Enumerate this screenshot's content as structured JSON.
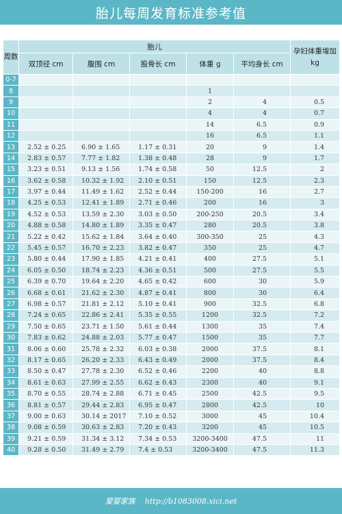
{
  "title": "胎儿每周发育标准参考值",
  "footer": {
    "left": "爱婴家族",
    "right": "http://b1083008.xici.net"
  },
  "headers": {
    "week": "周数",
    "fetus": "胎儿",
    "bpd": "双顶径 cm",
    "ac": "腹围 cm",
    "fl": "股骨长 cm",
    "weight": "体重 g",
    "length": "平均身长 cm",
    "gain": "孕妇体重增加 kg"
  },
  "rows": [
    {
      "week": "0-7",
      "bpd": "",
      "ac": "",
      "fl": "",
      "weight": "",
      "length": "",
      "gain": ""
    },
    {
      "week": "8",
      "bpd": "",
      "ac": "",
      "fl": "",
      "weight": "1",
      "length": "",
      "gain": ""
    },
    {
      "week": "9",
      "bpd": "",
      "ac": "",
      "fl": "",
      "weight": "2",
      "length": "4",
      "gain": "0.5"
    },
    {
      "week": "10",
      "bpd": "",
      "ac": "",
      "fl": "",
      "weight": "4",
      "length": "4",
      "gain": "0.7"
    },
    {
      "week": "11",
      "bpd": "",
      "ac": "",
      "fl": "",
      "weight": "14",
      "length": "6.5",
      "gain": "0.9"
    },
    {
      "week": "12",
      "bpd": "",
      "ac": "",
      "fl": "",
      "weight": "16",
      "length": "6.5",
      "gain": "1.1"
    },
    {
      "week": "13",
      "bpd": "2.52 ± 0.25",
      "ac": "6.90 ± 1.65",
      "fl": "1.17 ± 0.31",
      "weight": "20",
      "length": "9",
      "gain": "1.4"
    },
    {
      "week": "14",
      "bpd": "2.83 ± 0.57",
      "ac": "7.77 ± 1.82",
      "fl": "1.38 ± 0.48",
      "weight": "28",
      "length": "9",
      "gain": "1.7"
    },
    {
      "week": "15",
      "bpd": "3.23 ± 0.51",
      "ac": "9.13 ± 1.56",
      "fl": "1.74 ± 0.58",
      "weight": "50",
      "length": "12.5",
      "gain": "2"
    },
    {
      "week": "16",
      "bpd": "3.62 ± 0.58",
      "ac": "10.32 ± 1.92",
      "fl": "2.10 ± 0.51",
      "weight": "150",
      "length": "12.5",
      "gain": "2.3"
    },
    {
      "week": "17",
      "bpd": "3.97 ± 0.44",
      "ac": "11.49 ± 1.62",
      "fl": "2.52 ± 0.44",
      "weight": "150-200",
      "length": "16",
      "gain": "2.7"
    },
    {
      "week": "18",
      "bpd": "4.25 ± 0.53",
      "ac": "12.41 ± 1.89",
      "fl": "2.71 ± 0.46",
      "weight": "200",
      "length": "16",
      "gain": "3"
    },
    {
      "week": "19",
      "bpd": "4.52 ± 0.53",
      "ac": "13.59 ± 2.30",
      "fl": "3.03 ± 0.50",
      "weight": "200-250",
      "length": "20.5",
      "gain": "3.4"
    },
    {
      "week": "20",
      "bpd": "4.88 ± 0.58",
      "ac": "14.80 ± 1.89",
      "fl": "3.35 ± 0.47",
      "weight": "280",
      "length": "20.5",
      "gain": "3.8"
    },
    {
      "week": "21",
      "bpd": "5.22 ± 0.42",
      "ac": "15.62 ± 1.84",
      "fl": "3.64 ± 0.40",
      "weight": "300-350",
      "length": "25",
      "gain": "4.3"
    },
    {
      "week": "22",
      "bpd": "5.45 ± 0.57",
      "ac": "16.70 ± 2.23",
      "fl": "3.82 ± 0.47",
      "weight": "350",
      "length": "25",
      "gain": "4.7"
    },
    {
      "week": "23",
      "bpd": "5.80 ± 0.44",
      "ac": "17.90 ± 1.85",
      "fl": "4.21 ± 0.41",
      "weight": "400",
      "length": "27.5",
      "gain": "5.1"
    },
    {
      "week": "24",
      "bpd": "6.05 ± 0.50",
      "ac": "18.74 ± 2.23",
      "fl": "4.36 ± 0.51",
      "weight": "500",
      "length": "27.5",
      "gain": "5.5"
    },
    {
      "week": "25",
      "bpd": "6.39 ± 0.70",
      "ac": "19.64 ± 2.20",
      "fl": "4.65 ± 0.42",
      "weight": "600",
      "length": "30",
      "gain": "5.9"
    },
    {
      "week": "26",
      "bpd": "6.68 ± 0.61",
      "ac": "21.62 ± 2.30",
      "fl": "4.87 ± 0.41",
      "weight": "800",
      "length": "30",
      "gain": "6.4"
    },
    {
      "week": "27",
      "bpd": "6.98 ± 0.57",
      "ac": "21.81 ± 2.12",
      "fl": "5.10 ± 0.41",
      "weight": "900",
      "length": "32.5",
      "gain": "6.8"
    },
    {
      "week": "28",
      "bpd": "7.24 ± 0.65",
      "ac": "22.86 ± 2.41",
      "fl": "5.35 ± 0.55",
      "weight": "1200",
      "length": "32.5",
      "gain": "7.2"
    },
    {
      "week": "29",
      "bpd": "7.50 ± 0.65",
      "ac": "23.71 ± 1.50",
      "fl": "5.61 ± 0.44",
      "weight": "1300",
      "length": "35",
      "gain": "7.4"
    },
    {
      "week": "30",
      "bpd": "7.83 ± 0.62",
      "ac": "24.88 ± 2.03",
      "fl": "5.77 ± 0.47",
      "weight": "1500",
      "length": "35",
      "gain": "7.7"
    },
    {
      "week": "31",
      "bpd": "8.06 ± 0.60",
      "ac": "25.78 ± 2.32",
      "fl": "6.03 ± 0.38",
      "weight": "2000",
      "length": "37.5",
      "gain": "8.1"
    },
    {
      "week": "32",
      "bpd": "8.17 ± 0.65",
      "ac": "26.20 ± 2.33",
      "fl": "6.43 ± 0.49",
      "weight": "2000",
      "length": "37.5",
      "gain": "8.4"
    },
    {
      "week": "33",
      "bpd": "8.50 ± 0.47",
      "ac": "27.78 ± 2.30",
      "fl": "6.52 ± 0.46",
      "weight": "2200",
      "length": "40",
      "gain": "8.8"
    },
    {
      "week": "34",
      "bpd": "8.61 ± 0.63",
      "ac": "27.99 ± 2.55",
      "fl": "6.62 ± 0.43",
      "weight": "2300",
      "length": "40",
      "gain": "9.1"
    },
    {
      "week": "35",
      "bpd": "8.70 ± 0.55",
      "ac": "28.74 ± 2.88",
      "fl": "6.71 ± 0.45",
      "weight": "2500",
      "length": "42.5",
      "gain": "9.5"
    },
    {
      "week": "36",
      "bpd": "8.81 ± 0.57",
      "ac": "29.44 ± 2.83",
      "fl": "6.95 ± 0.47",
      "weight": "2800",
      "length": "42.5",
      "gain": "10"
    },
    {
      "week": "37",
      "bpd": "9.00 ± 0.63",
      "ac": "30.14 ± 2017",
      "fl": "7.10 ± 0.52",
      "weight": "3000",
      "length": "45",
      "gain": "10.4"
    },
    {
      "week": "38",
      "bpd": "9.08 ± 0.59",
      "ac": "30.63 ± 2.83",
      "fl": "7.20 ± 0.43",
      "weight": "3200",
      "length": "45",
      "gain": "10.5"
    },
    {
      "week": "39",
      "bpd": "9.21 ± 0.59",
      "ac": "31.34 ± 3.12",
      "fl": "7.34 ± 0.53",
      "weight": "3200-3400",
      "length": "47.5",
      "gain": "11"
    },
    {
      "week": "40",
      "bpd": "9.28 ± 0.50",
      "ac": "31.49 ± 2.79",
      "fl": "7.4 ± 0.53",
      "weight": "3200-3400",
      "length": "47.5",
      "gain": "11.3"
    }
  ]
}
